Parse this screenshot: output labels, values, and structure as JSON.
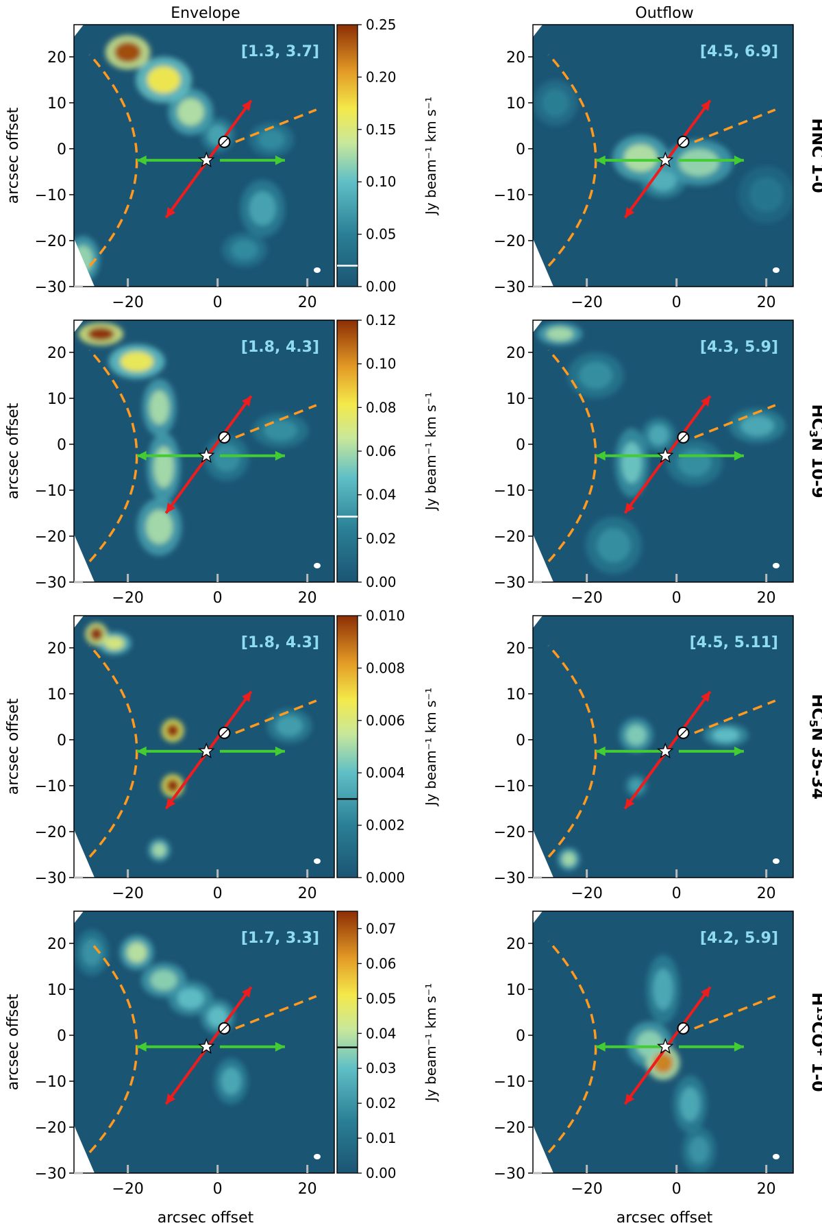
{
  "figure": {
    "column_titles": [
      "Envelope",
      "Outflow"
    ],
    "row_labels": [
      {
        "base": "HNC 1-0",
        "parts": [
          {
            "t": "HNC 1-0",
            "s": ""
          }
        ]
      },
      {
        "base": "HC3N 10-9",
        "parts": [
          {
            "t": "HC",
            "s": ""
          },
          {
            "t": "3",
            "s": "sub"
          },
          {
            "t": "N 10-9",
            "s": ""
          }
        ]
      },
      {
        "base": "HC5N 35-34",
        "parts": [
          {
            "t": "HC",
            "s": ""
          },
          {
            "t": "5",
            "s": "sub"
          },
          {
            "t": "N 35-34",
            "s": ""
          }
        ]
      },
      {
        "base": "H13CO+ 1-0",
        "parts": [
          {
            "t": "H",
            "s": ""
          },
          {
            "t": "13",
            "s": "sup"
          },
          {
            "t": "CO",
            "s": ""
          },
          {
            "t": "+",
            "s": "sup"
          },
          {
            "t": " 1-0",
            "s": ""
          }
        ]
      }
    ],
    "xlabel": "arcsec offset",
    "ylabel": "arcsec offset",
    "colorbar_label": "Jy beam⁻¹ km s⁻¹",
    "colors": {
      "background": "#1b5574",
      "envelope_arc": "#ff9a1f",
      "outflow_arrow": "#ee1c1c",
      "velocity_arrow": "#44cc33",
      "range_label": "#8fdcf0"
    }
  },
  "chart_data": [
    {
      "type": "heatmap",
      "row": 0,
      "column": "Envelope",
      "molecule": "HNC 1-0",
      "velocity_range": "[1.3, 3.7]",
      "xlim": [
        -32,
        26
      ],
      "ylim": [
        -30,
        27
      ],
      "xticks": [
        -20,
        0,
        20
      ],
      "yticks": [
        -30,
        -20,
        -10,
        0,
        10,
        20
      ],
      "colorbar": {
        "min": 0.0,
        "max": 0.25,
        "ticks": [
          "0.00",
          "0.05",
          "0.10",
          "0.15",
          "0.20",
          "0.25"
        ],
        "threshold": 0.02,
        "threshold_color": "#ffffff"
      },
      "emission": [
        {
          "x": -20,
          "y": 21,
          "sx": 4,
          "sy": 3,
          "a": 0.24
        },
        {
          "x": -12,
          "y": 15,
          "sx": 5,
          "sy": 4,
          "a": 0.17
        },
        {
          "x": -6,
          "y": 8,
          "sx": 4,
          "sy": 4,
          "a": 0.13
        },
        {
          "x": 0,
          "y": 3,
          "sx": 3,
          "sy": 3,
          "a": 0.08
        },
        {
          "x": 12,
          "y": 2,
          "sx": 4,
          "sy": 3,
          "a": 0.06
        },
        {
          "x": 10,
          "y": -13,
          "sx": 4,
          "sy": 5,
          "a": 0.08
        },
        {
          "x": 6,
          "y": -22,
          "sx": 4,
          "sy": 3,
          "a": 0.06
        },
        {
          "x": -30,
          "y": -24,
          "sx": 3,
          "sy": 4,
          "a": 0.12
        }
      ],
      "star_color": "#ffffff"
    },
    {
      "type": "heatmap",
      "row": 0,
      "column": "Outflow",
      "molecule": "HNC 1-0",
      "velocity_range": "[4.5, 6.9]",
      "xlim": [
        -32,
        26
      ],
      "ylim": [
        -30,
        27
      ],
      "xticks": [
        -20,
        0,
        20
      ],
      "yticks": [
        -30,
        -20,
        -10,
        0,
        10,
        20
      ],
      "emission": [
        {
          "x": -8,
          "y": -2,
          "sx": 5,
          "sy": 4,
          "a": 0.13
        },
        {
          "x": 5,
          "y": -3,
          "sx": 6,
          "sy": 4,
          "a": 0.12
        },
        {
          "x": -3,
          "y": -7,
          "sx": 4,
          "sy": 3,
          "a": 0.09
        },
        {
          "x": -27,
          "y": 10,
          "sx": 4,
          "sy": 4,
          "a": 0.05
        },
        {
          "x": 20,
          "y": -10,
          "sx": 5,
          "sy": 5,
          "a": 0.04
        }
      ],
      "star_color": "#ffffff"
    },
    {
      "type": "heatmap",
      "row": 1,
      "column": "Envelope",
      "molecule": "HC3N 10-9",
      "velocity_range": "[1.8, 4.3]",
      "xlim": [
        -32,
        26
      ],
      "ylim": [
        -30,
        27
      ],
      "xticks": [
        -20,
        0,
        20
      ],
      "yticks": [
        -30,
        -20,
        -10,
        0,
        10,
        20
      ],
      "colorbar": {
        "min": 0.0,
        "max": 0.12,
        "ticks": [
          "0.00",
          "0.02",
          "0.04",
          "0.06",
          "0.08",
          "0.10",
          "0.12"
        ],
        "threshold": 0.03,
        "threshold_color": "#ffffff"
      },
      "emission": [
        {
          "x": -26,
          "y": 24,
          "sx": 4,
          "sy": 2,
          "a": 0.12
        },
        {
          "x": -18,
          "y": 18,
          "sx": 5,
          "sy": 3,
          "a": 0.08
        },
        {
          "x": -13,
          "y": 8,
          "sx": 3,
          "sy": 5,
          "a": 0.06
        },
        {
          "x": -12,
          "y": -5,
          "sx": 3,
          "sy": 6,
          "a": 0.06
        },
        {
          "x": -13,
          "y": -18,
          "sx": 4,
          "sy": 5,
          "a": 0.06
        },
        {
          "x": 2,
          "y": -3,
          "sx": 4,
          "sy": 4,
          "a": 0.03
        },
        {
          "x": 14,
          "y": 3,
          "sx": 5,
          "sy": 3,
          "a": 0.03
        }
      ],
      "star_color": "#ffffff"
    },
    {
      "type": "heatmap",
      "row": 1,
      "column": "Outflow",
      "molecule": "HC3N 10-9",
      "velocity_range": "[4.3, 5.9]",
      "xlim": [
        -32,
        26
      ],
      "ylim": [
        -30,
        27
      ],
      "xticks": [
        -20,
        0,
        20
      ],
      "yticks": [
        -30,
        -20,
        -10,
        0,
        10,
        20
      ],
      "emission": [
        {
          "x": -26,
          "y": 24,
          "sx": 4,
          "sy": 2,
          "a": 0.06
        },
        {
          "x": -18,
          "y": 15,
          "sx": 5,
          "sy": 4,
          "a": 0.03
        },
        {
          "x": -10,
          "y": -4,
          "sx": 3,
          "sy": 6,
          "a": 0.05
        },
        {
          "x": -4,
          "y": 2,
          "sx": 3,
          "sy": 3,
          "a": 0.04
        },
        {
          "x": 4,
          "y": -4,
          "sx": 5,
          "sy": 4,
          "a": 0.03
        },
        {
          "x": 18,
          "y": 4,
          "sx": 5,
          "sy": 3,
          "a": 0.04
        },
        {
          "x": -14,
          "y": -22,
          "sx": 5,
          "sy": 5,
          "a": 0.03
        }
      ],
      "star_color": "#ffffff"
    },
    {
      "type": "heatmap",
      "row": 2,
      "column": "Envelope",
      "molecule": "HC5N 35-34",
      "velocity_range": "[1.8, 4.3]",
      "xlim": [
        -32,
        26
      ],
      "ylim": [
        -30,
        27
      ],
      "xticks": [
        -20,
        0,
        20
      ],
      "yticks": [
        -30,
        -20,
        -10,
        0,
        10,
        20
      ],
      "colorbar": {
        "min": 0.0,
        "max": 0.01,
        "ticks": [
          "0.000",
          "0.002",
          "0.004",
          "0.006",
          "0.008",
          "0.010"
        ],
        "threshold": 0.003,
        "threshold_color": "#111111"
      },
      "emission": [
        {
          "x": -27,
          "y": 23,
          "sx": 2,
          "sy": 2,
          "a": 0.01
        },
        {
          "x": -23,
          "y": 21,
          "sx": 3,
          "sy": 2,
          "a": 0.006
        },
        {
          "x": -10,
          "y": 2,
          "sx": 2,
          "sy": 2,
          "a": 0.011
        },
        {
          "x": -10,
          "y": -10,
          "sx": 2,
          "sy": 2,
          "a": 0.011
        },
        {
          "x": -13,
          "y": -24,
          "sx": 2,
          "sy": 2,
          "a": 0.005
        },
        {
          "x": 16,
          "y": 3,
          "sx": 4,
          "sy": 3,
          "a": 0.003
        }
      ],
      "star_color": "#ffffff"
    },
    {
      "type": "heatmap",
      "row": 2,
      "column": "Outflow",
      "molecule": "HC5N 35-34",
      "velocity_range": "[4.5, 5.11]",
      "xlim": [
        -32,
        26
      ],
      "ylim": [
        -30,
        27
      ],
      "xticks": [
        -20,
        0,
        20
      ],
      "yticks": [
        -30,
        -20,
        -10,
        0,
        10,
        20
      ],
      "emission": [
        {
          "x": -9,
          "y": 1,
          "sx": 3,
          "sy": 3,
          "a": 0.0045
        },
        {
          "x": 11,
          "y": 1,
          "sx": 4,
          "sy": 2,
          "a": 0.004
        },
        {
          "x": -9,
          "y": -10,
          "sx": 2,
          "sy": 2,
          "a": 0.003
        },
        {
          "x": -24,
          "y": -26,
          "sx": 2,
          "sy": 2,
          "a": 0.005
        }
      ],
      "star_color": "#ffffff"
    },
    {
      "type": "heatmap",
      "row": 3,
      "column": "Envelope",
      "molecule": "H13CO+ 1-0",
      "velocity_range": "[1.7, 3.3]",
      "xlim": [
        -32,
        26
      ],
      "ylim": [
        -30,
        27
      ],
      "xticks": [
        -20,
        0,
        20
      ],
      "yticks": [
        -30,
        -20,
        -10,
        0,
        10,
        20
      ],
      "colorbar": {
        "min": 0.0,
        "max": 0.075,
        "ticks": [
          "0.00",
          "0.01",
          "0.02",
          "0.03",
          "0.04",
          "0.05",
          "0.06",
          "0.07"
        ],
        "threshold": 0.036,
        "threshold_color": "#111111"
      },
      "emission": [
        {
          "x": -18,
          "y": 18,
          "sx": 3,
          "sy": 3,
          "a": 0.04
        },
        {
          "x": -12,
          "y": 12,
          "sx": 4,
          "sy": 3,
          "a": 0.035
        },
        {
          "x": -6,
          "y": 8,
          "sx": 4,
          "sy": 3,
          "a": 0.03
        },
        {
          "x": 0,
          "y": 4,
          "sx": 3,
          "sy": 3,
          "a": 0.03
        },
        {
          "x": 3,
          "y": -10,
          "sx": 3,
          "sy": 4,
          "a": 0.025
        },
        {
          "x": -28,
          "y": 18,
          "sx": 3,
          "sy": 4,
          "a": 0.02
        }
      ],
      "star_color": "#ffffff"
    },
    {
      "type": "heatmap",
      "row": 3,
      "column": "Outflow",
      "molecule": "H13CO+ 1-0",
      "velocity_range": "[4.2, 5.9]",
      "xlim": [
        -32,
        26
      ],
      "ylim": [
        -30,
        27
      ],
      "xticks": [
        -20,
        0,
        20
      ],
      "yticks": [
        -30,
        -20,
        -10,
        0,
        10,
        20
      ],
      "emission": [
        {
          "x": -3,
          "y": -6,
          "sx": 3,
          "sy": 3,
          "a": 0.065
        },
        {
          "x": -6,
          "y": -2,
          "sx": 4,
          "sy": 4,
          "a": 0.035
        },
        {
          "x": -3,
          "y": 10,
          "sx": 3,
          "sy": 6,
          "a": 0.025
        },
        {
          "x": 3,
          "y": -15,
          "sx": 3,
          "sy": 5,
          "a": 0.025
        },
        {
          "x": 5,
          "y": -25,
          "sx": 3,
          "sy": 4,
          "a": 0.02
        }
      ],
      "star_color": "#ffffff"
    }
  ]
}
